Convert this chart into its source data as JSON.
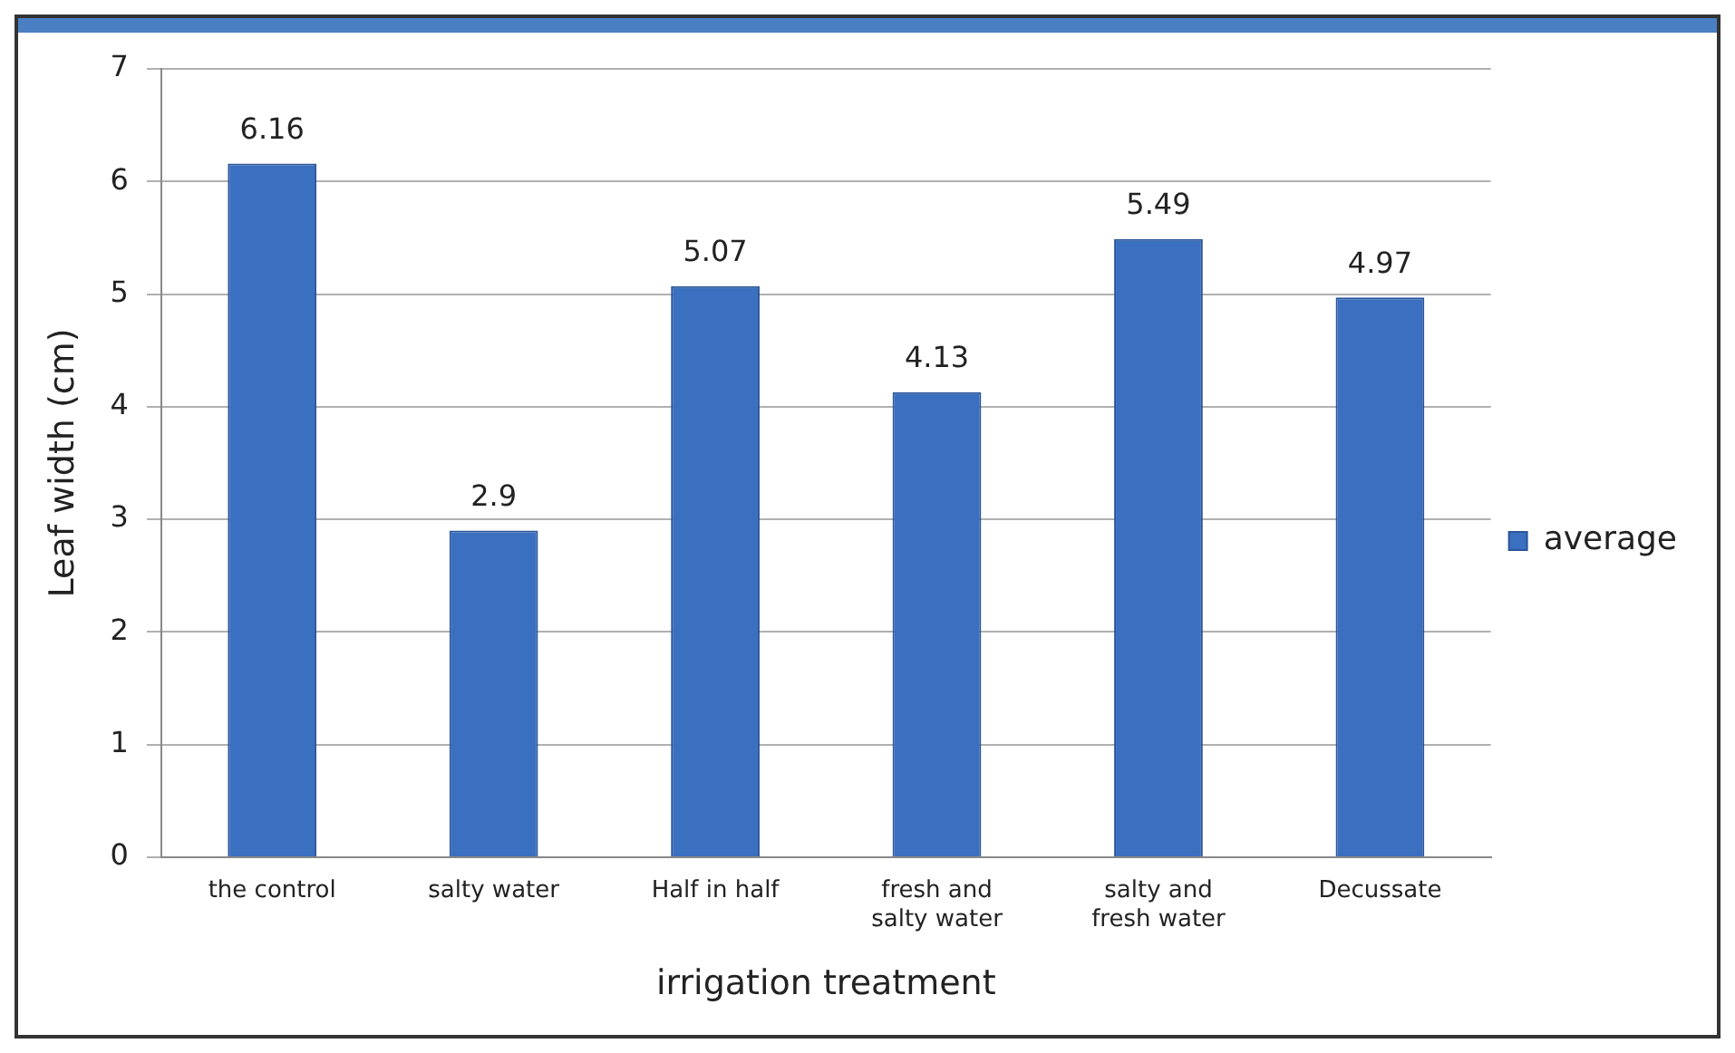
{
  "chart_data": {
    "type": "bar",
    "xlabel": "irrigation treatment",
    "ylabel": "Leaf width (cm)",
    "categories": [
      "the control",
      "salty water",
      "Half in half",
      "fresh and salty water",
      "salty and fresh water",
      "Decussate"
    ],
    "series": [
      {
        "name": "average",
        "color": "#3b6fbf",
        "values": [
          6.16,
          2.9,
          5.07,
          4.13,
          5.49,
          4.97
        ]
      }
    ],
    "ylim": [
      0,
      7
    ],
    "yticks": [
      0,
      1,
      2,
      3,
      4,
      5,
      6,
      7
    ],
    "grid": "y",
    "legend": "right",
    "data_labels": true
  }
}
